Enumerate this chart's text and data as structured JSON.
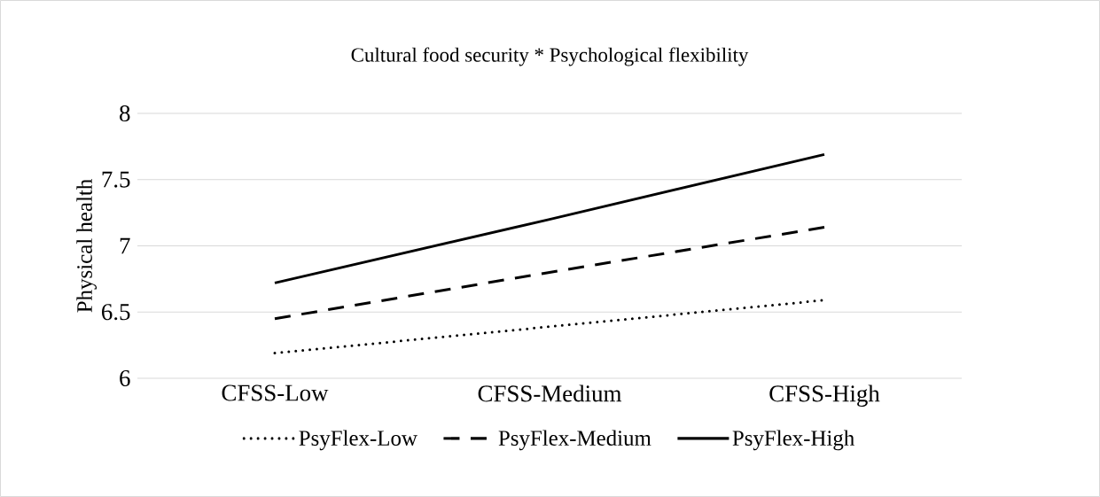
{
  "chart_data": {
    "type": "line",
    "title": "Cultural food security * Psychological flexibility",
    "ylabel": "Physical health",
    "categories": [
      "CFSS-Low",
      "CFSS-Medium",
      "CFSS-High"
    ],
    "series": [
      {
        "name": "PsyFlex-Low",
        "color": "#000000",
        "line_style": "dotted",
        "values": [
          6.19,
          6.39,
          6.59
        ]
      },
      {
        "name": "PsyFlex-Medium",
        "color": "#000000",
        "line_style": "dashed",
        "values": [
          6.45,
          6.8,
          7.14
        ]
      },
      {
        "name": "PsyFlex-High",
        "color": "#000000",
        "line_style": "solid",
        "values": [
          6.72,
          7.2,
          7.69
        ]
      }
    ],
    "ylim": [
      6,
      8
    ],
    "yticks": [
      6,
      6.5,
      7,
      7.5,
      8
    ],
    "grid": "y",
    "legend": "bottom",
    "marker": "none"
  }
}
